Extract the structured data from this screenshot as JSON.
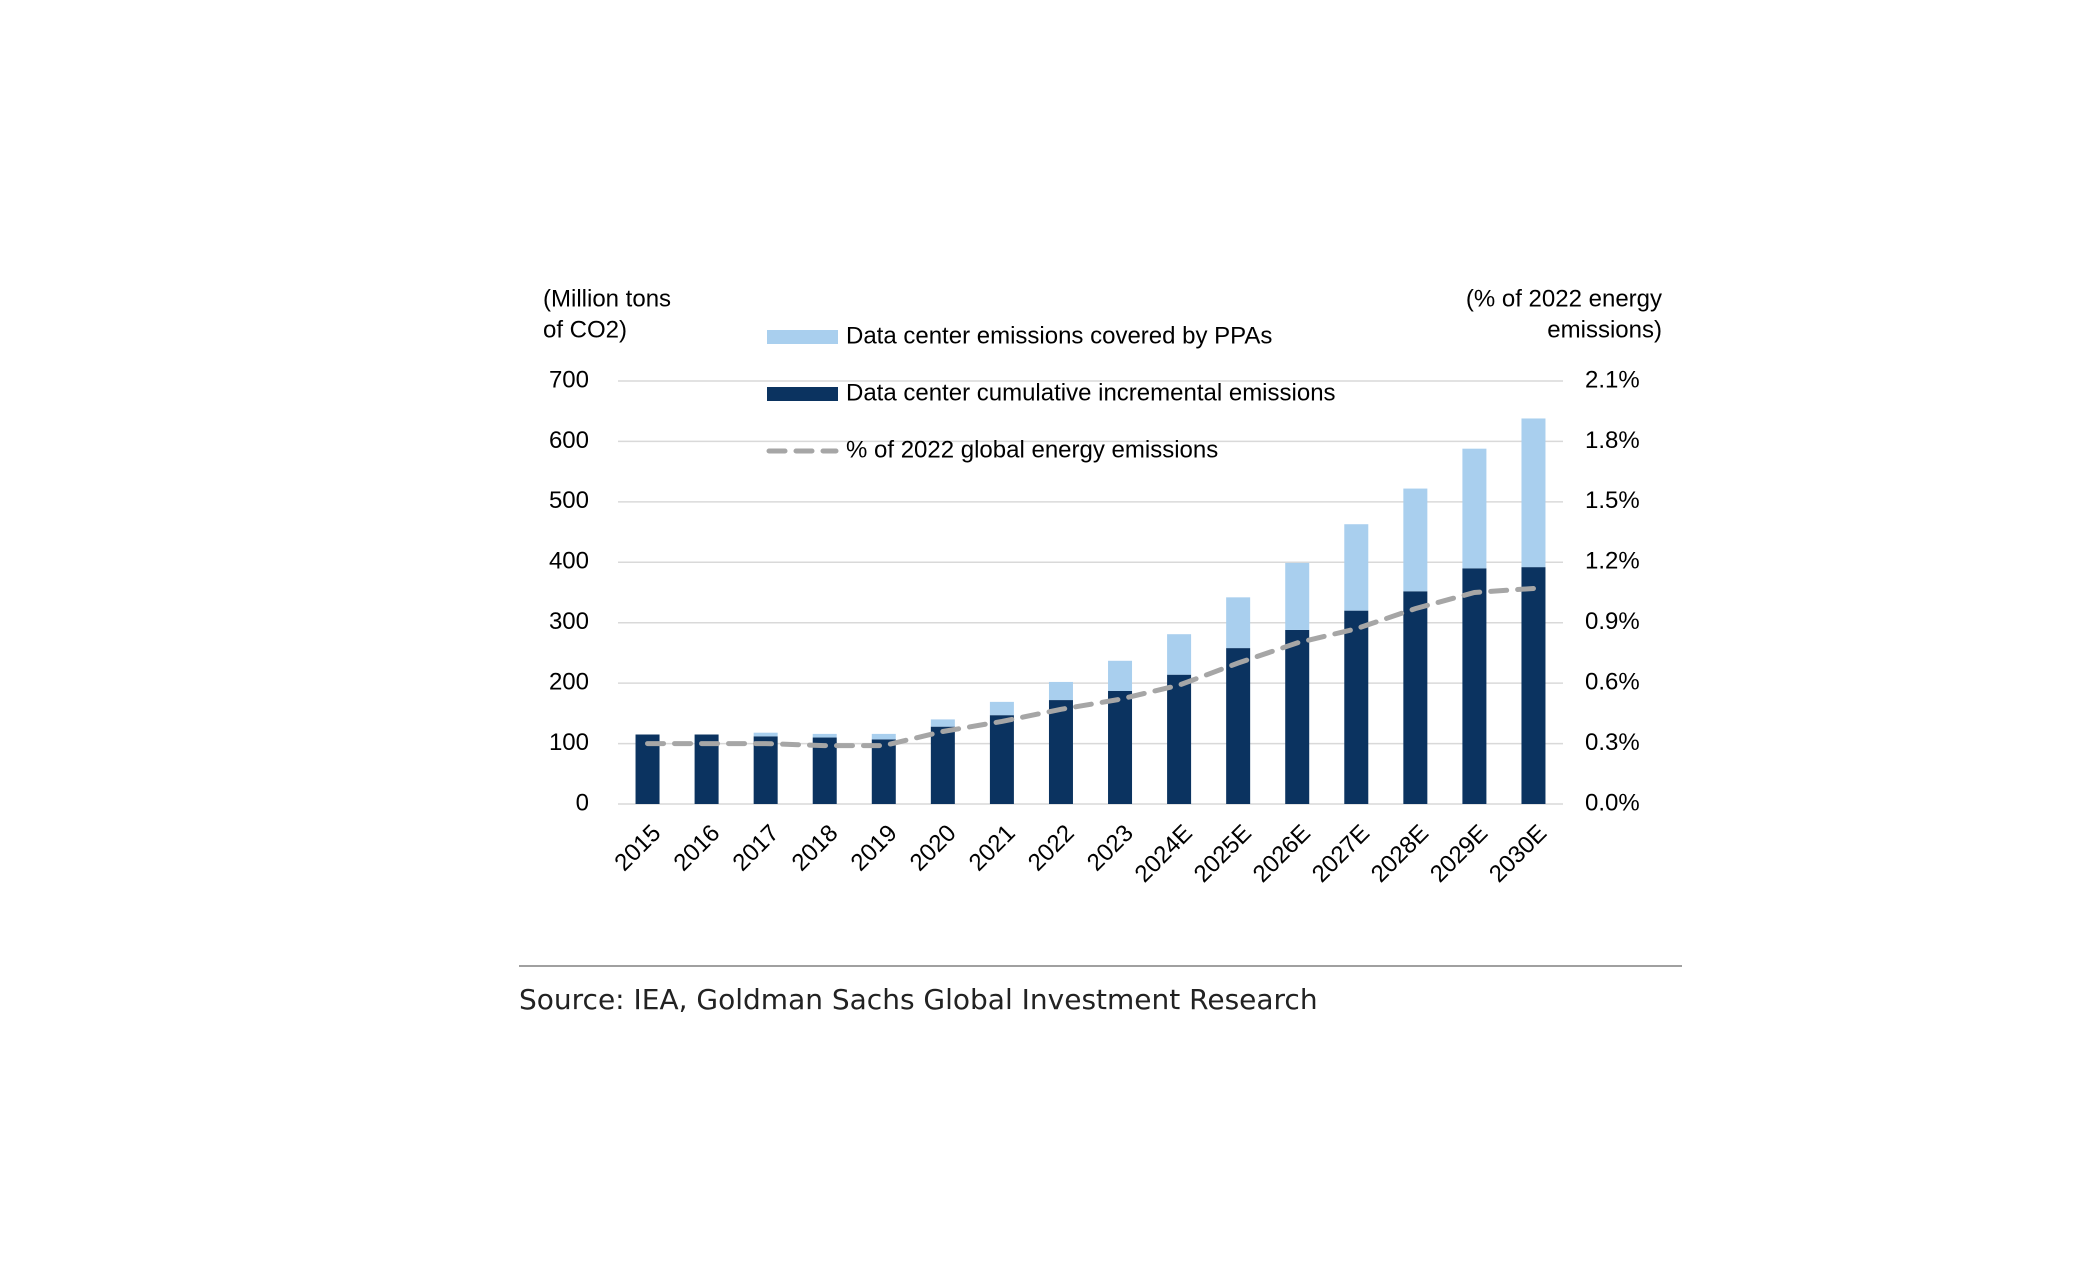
{
  "chart_data": {
    "type": "bar",
    "y_label": [
      "(Million tons",
      "of CO2)"
    ],
    "y2_label": [
      "(% of 2022 energy",
      "emissions)"
    ],
    "categories": [
      "2015",
      "2016",
      "2017",
      "2018",
      "2019",
      "2020",
      "2021",
      "2022",
      "2023",
      "2024E",
      "2025E",
      "2026E",
      "2027E",
      "2028E",
      "2029E",
      "2030E"
    ],
    "series": [
      {
        "name": "Data center emissions covered by PPAs",
        "color": "#a9cfee",
        "stack": "top",
        "values": [
          0,
          0,
          6,
          6,
          9,
          12,
          22,
          30,
          50,
          67,
          84,
          111,
          143,
          170,
          198,
          246
        ]
      },
      {
        "name": "Data center cumulative incremental emissions",
        "color": "#0b3360",
        "stack": "bottom",
        "values": [
          115,
          115,
          112,
          110,
          107,
          128,
          147,
          172,
          187,
          214,
          258,
          288,
          320,
          352,
          390,
          392
        ]
      },
      {
        "name": "% of 2022 global energy emissions",
        "color": "#a6a6a6",
        "type": "line",
        "axis": "y2",
        "dashed": true,
        "values": [
          0.3,
          0.3,
          0.3,
          0.29,
          0.29,
          0.36,
          0.41,
          0.47,
          0.52,
          0.59,
          0.7,
          0.8,
          0.87,
          0.97,
          1.05,
          1.07
        ]
      }
    ],
    "ylim": [
      0,
      700
    ],
    "yticks": [
      0,
      100,
      200,
      300,
      400,
      500,
      600,
      700
    ],
    "y2lim": [
      0,
      2.1
    ],
    "y2ticks": [
      {
        "value": 0,
        "label": "0.0%"
      },
      {
        "value": 0.3,
        "label": "0.3%"
      },
      {
        "value": 0.6,
        "label": "0.6%"
      },
      {
        "value": 0.9,
        "label": "0.9%"
      },
      {
        "value": 1.2,
        "label": "1.2%"
      },
      {
        "value": 1.5,
        "label": "1.5%"
      },
      {
        "value": 1.8,
        "label": "1.8%"
      },
      {
        "value": 2.1,
        "label": "2.1%"
      }
    ],
    "grid": true,
    "source": "Source: IEA, Goldman Sachs Global Investment Research"
  }
}
